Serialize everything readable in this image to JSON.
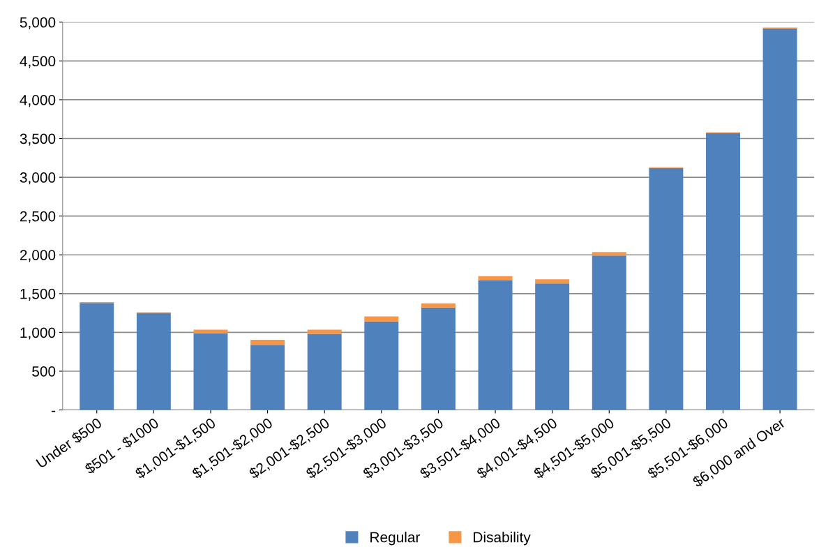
{
  "chart_data": {
    "type": "bar",
    "stacked": true,
    "categories": [
      "Under $500",
      "$501 - $1000",
      "$1,001-$1,500",
      "$1,501-$2,000",
      "$2,001-$2,500",
      "$2,501-$3,000",
      "$3,001-$3,500",
      "$3,501-$4,000",
      "$4,001-$4,500",
      "$4,501-$5,000",
      "$5,001-$5,500",
      "$5,501-$6,000",
      "$6,000 and Over"
    ],
    "series": [
      {
        "name": "Regular",
        "color": "#4f81bd",
        "values": [
          1380,
          1250,
          990,
          840,
          980,
          1140,
          1320,
          1670,
          1630,
          1990,
          3120,
          3570,
          4920
        ]
      },
      {
        "name": "Disability",
        "color": "#f79646",
        "values": [
          10,
          10,
          45,
          65,
          55,
          65,
          55,
          55,
          55,
          45,
          10,
          10,
          10
        ]
      }
    ],
    "ylim": [
      0,
      5000
    ],
    "yticks": [
      {
        "value": 0,
        "label": "-"
      },
      {
        "value": 500,
        "label": "500"
      },
      {
        "value": 1000,
        "label": "1,000"
      },
      {
        "value": 1500,
        "label": "1,500"
      },
      {
        "value": 2000,
        "label": "2,000"
      },
      {
        "value": 2500,
        "label": "2,500"
      },
      {
        "value": 3000,
        "label": "3,000"
      },
      {
        "value": 3500,
        "label": "3,500"
      },
      {
        "value": 4000,
        "label": "4,000"
      },
      {
        "value": 4500,
        "label": "4,500"
      },
      {
        "value": 5000,
        "label": "5,000"
      }
    ],
    "grid": "y",
    "legend": "bottom"
  }
}
